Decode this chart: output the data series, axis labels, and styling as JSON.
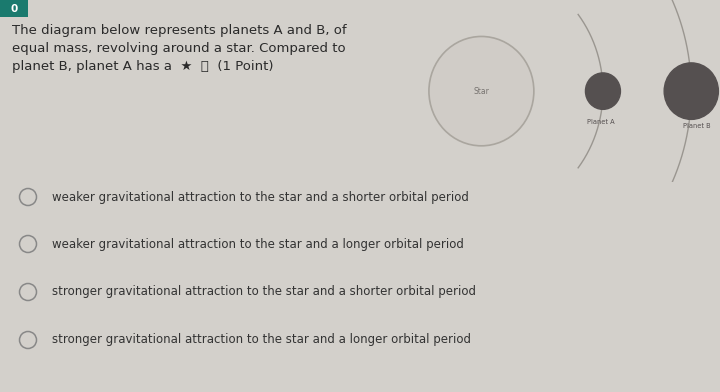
{
  "bg_color": "#d3d0cb",
  "diagram_bg": "#e8e4df",
  "options": [
    "weaker gravitational attraction to the star and a shorter orbital period",
    "weaker gravitational attraction to the star and a longer orbital period",
    "stronger gravitational attraction to the star and a shorter orbital period",
    "stronger gravitational attraction to the star and a longer orbital period"
  ],
  "question_line1": "The diagram below represents planets A and B, of",
  "question_line2": "equal mass, revolving around a star. Compared to",
  "question_line3": "planet B, planet A has a  ★  ⧉  (1 Point)",
  "star_color": "#d0ccc7",
  "star_edge_color": "#aaa69f",
  "planet_color": "#555050",
  "orbit_color": "#9a9690",
  "text_color": "#2a2a2a",
  "option_text_color": "#333333",
  "teal_box_color": "#1a7a6e",
  "radio_color": "#888888"
}
